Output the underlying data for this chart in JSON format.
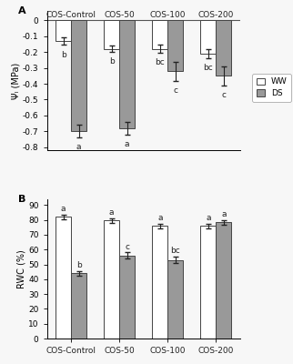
{
  "categories": [
    "COS-Control",
    "COS-50",
    "COS-100",
    "COS-200"
  ],
  "panel_A": {
    "ylabel": "Ψₗ (MPa)",
    "ylim": [
      -0.82,
      0.06
    ],
    "yticks": [
      0,
      -0.1,
      -0.2,
      -0.3,
      -0.4,
      -0.5,
      -0.6,
      -0.7,
      -0.8
    ],
    "ww_values": [
      -0.13,
      -0.18,
      -0.18,
      -0.21
    ],
    "ds_values": [
      -0.7,
      -0.68,
      -0.32,
      -0.35
    ],
    "ww_errors": [
      0.025,
      0.02,
      0.025,
      0.03
    ],
    "ds_errors": [
      0.04,
      0.04,
      0.06,
      0.06
    ],
    "ww_labels": [
      "b",
      "b",
      "bc",
      "bc"
    ],
    "ds_labels": [
      "a",
      "a",
      "c",
      "c"
    ]
  },
  "panel_B": {
    "ylabel": "RWC (%)",
    "ylim": [
      0,
      94
    ],
    "yticks": [
      0,
      10,
      20,
      30,
      40,
      50,
      60,
      70,
      80,
      90
    ],
    "ww_values": [
      82,
      79.5,
      76,
      76
    ],
    "ds_values": [
      44,
      56,
      53,
      78.5
    ],
    "ww_errors": [
      1.5,
      1.5,
      1.5,
      1.5
    ],
    "ds_errors": [
      1.5,
      2.0,
      2.0,
      1.5
    ],
    "ww_labels": [
      "a",
      "a",
      "a",
      "a"
    ],
    "ds_labels": [
      "b",
      "c",
      "bc",
      "a"
    ]
  },
  "bar_width": 0.32,
  "ww_color": "#ffffff",
  "ds_color": "#999999",
  "edge_color": "#444444",
  "text_color": "#222222",
  "background_color": "#f7f7f7",
  "label_fontsize": 6.5,
  "axis_fontsize": 7,
  "tick_fontsize": 6.5,
  "letter_fontsize": 8,
  "cat_fontsize": 6.5
}
